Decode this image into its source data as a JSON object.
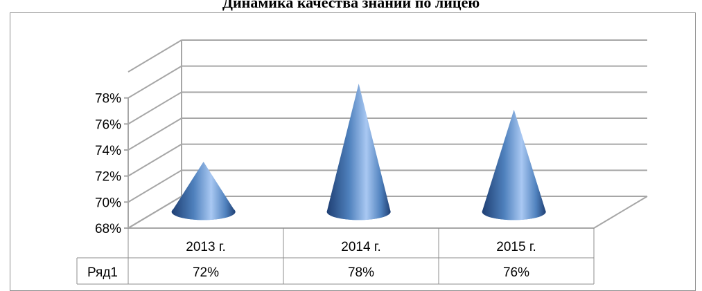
{
  "chart_data": {
    "type": "bar",
    "subtype": "3d-cone",
    "title": "Динамика качества знаний по лицею",
    "categories": [
      "2013 г.",
      "2014 г.",
      "2015 г."
    ],
    "series": [
      {
        "name": "Ряд1",
        "values": [
          0.72,
          0.78,
          0.76
        ],
        "labels": [
          "72%",
          "78%",
          "76%"
        ]
      }
    ],
    "ylim": [
      0.68,
      0.8
    ],
    "y_ticks": [
      "68%",
      "70%",
      "72%",
      "74%",
      "76%",
      "78%"
    ],
    "y_tick_values": [
      0.68,
      0.7,
      0.72,
      0.74,
      0.76,
      0.78
    ],
    "grid": true,
    "data_table": true,
    "colors": {
      "cone_light": "#a9c8f2",
      "cone_mid": "#4f81bd",
      "cone_dark": "#1f3f73",
      "grid": "#a6a6a6"
    }
  }
}
